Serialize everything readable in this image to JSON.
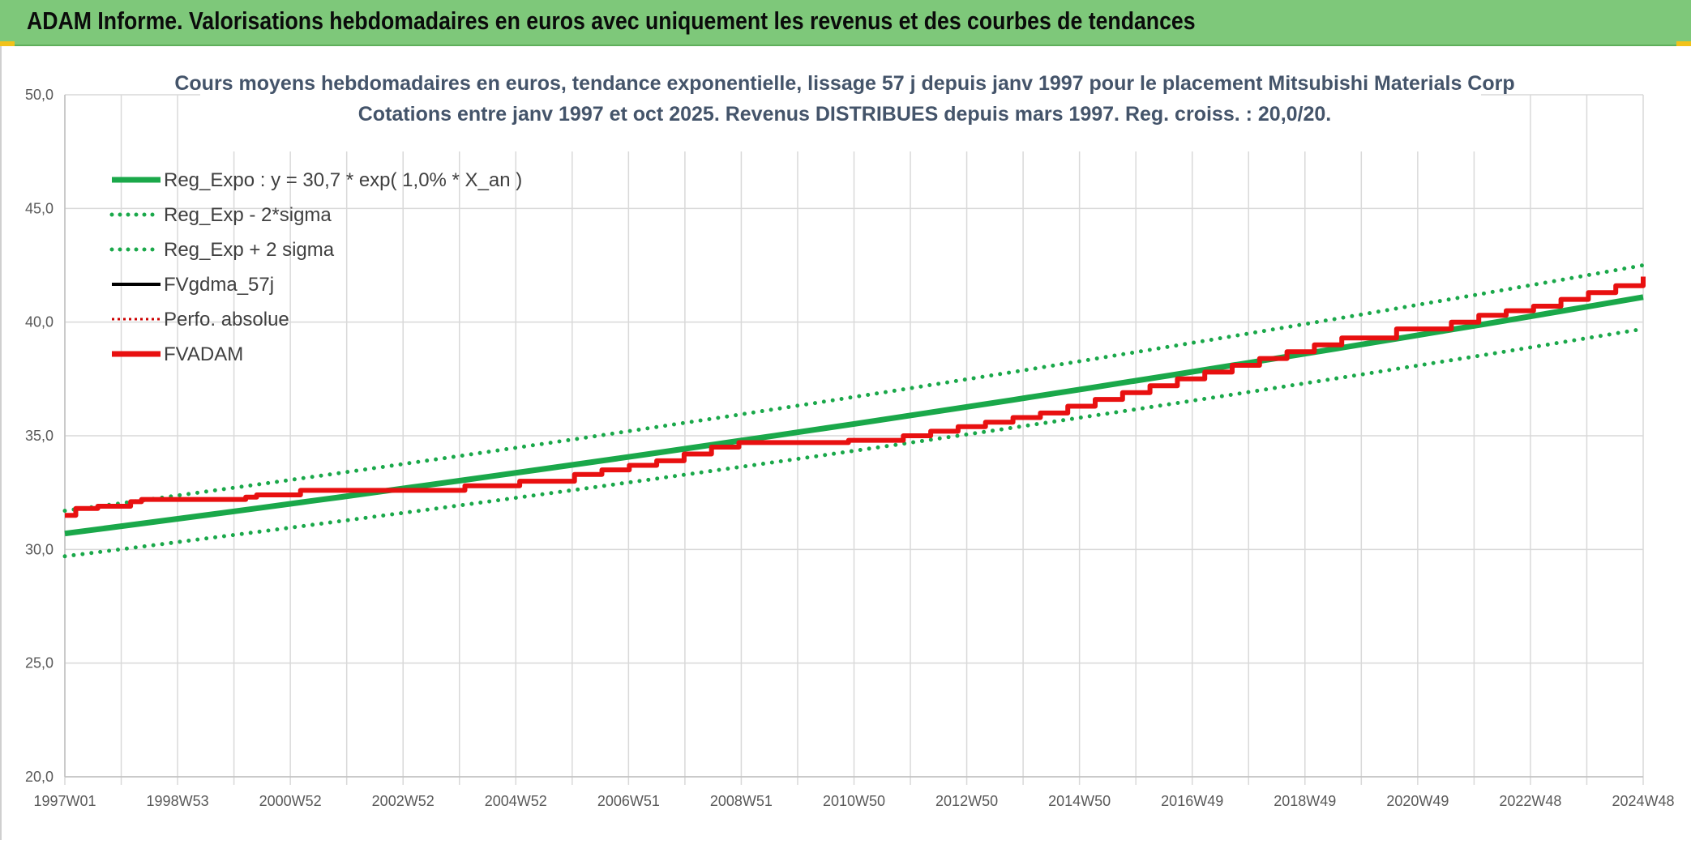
{
  "banner": {
    "title": "ADAM Informe. Valorisations hebdomadaires en euros avec uniquement les revenus et des courbes de tendances"
  },
  "colors": {
    "banner_bg": "#7ec87a",
    "regression": "#1aa84a",
    "fvadam": "#e81010",
    "fvgdma": "#000000",
    "perfo": "#cc0000",
    "grid": "#d9d9d9",
    "title_text": "#44546a"
  },
  "chart_data": {
    "type": "line",
    "title": "Cours moyens hebdomadaires en euros, tendance exponentielle, lissage 57 j depuis janv 1997 pour le placement Mitsubishi Materials Corp",
    "subtitle": "Cotations entre janv 1997 et oct 2025. Revenus DISTRIBUES depuis mars 1997. Reg. croiss. : 20,0/20.",
    "xlabel": "",
    "ylabel": "",
    "ylim": [
      20.0,
      50.0
    ],
    "y_ticks": [
      "20,0",
      "25,0",
      "30,0",
      "35,0",
      "40,0",
      "45,0",
      "50,0"
    ],
    "x_ticks": [
      "1997W01",
      "1998W53",
      "2000W52",
      "2002W52",
      "2004W52",
      "2006W51",
      "2008W51",
      "2010W50",
      "2012W50",
      "2014W50",
      "2016W49",
      "2018W49",
      "2020W49",
      "2022W48",
      "2024W48"
    ],
    "xlim": [
      1997.0,
      2025.8
    ],
    "grid": true,
    "legend_position": "top-left",
    "legend": [
      {
        "label": "Reg_Expo : y = 30,7 * exp( 1,0% *  X_an )",
        "style": "solid-thick",
        "color": "#1aa84a"
      },
      {
        "label": "Reg_Exp - 2*sigma",
        "style": "dotted",
        "color": "#1aa84a"
      },
      {
        "label": "Reg_Exp + 2 sigma",
        "style": "dotted",
        "color": "#1aa84a"
      },
      {
        "label": "FVgdma_57j",
        "style": "solid",
        "color": "#000000"
      },
      {
        "label": "Perfo. absolue",
        "style": "dotted-thin",
        "color": "#cc0000"
      },
      {
        "label": "FVADAM",
        "style": "solid-thick",
        "color": "#e81010"
      }
    ],
    "series": [
      {
        "name": "Reg_Expo : y = 30,7 * exp( 1,0% *  X_an )",
        "x": [
          1997.0,
          2025.8
        ],
        "y": [
          30.7,
          41.1
        ]
      },
      {
        "name": "Reg_Exp - 2*sigma",
        "x": [
          1997.0,
          2025.8
        ],
        "y": [
          29.7,
          39.7
        ]
      },
      {
        "name": "Reg_Exp + 2 sigma",
        "x": [
          1997.0,
          2025.8
        ],
        "y": [
          31.7,
          42.5
        ]
      },
      {
        "name": "FVADAM",
        "x": [
          1997.0,
          1997.2,
          1997.6,
          1998.2,
          1998.4,
          1999.2,
          2000.3,
          2000.5,
          2001.3,
          2002.3,
          2003.3,
          2004.3,
          2005.3,
          2006.3,
          2006.8,
          2007.3,
          2007.8,
          2008.3,
          2008.8,
          2009.3,
          2010.3,
          2011.3,
          2012.3,
          2012.8,
          2013.3,
          2013.8,
          2014.3,
          2014.8,
          2015.3,
          2015.8,
          2016.3,
          2016.8,
          2017.3,
          2017.8,
          2018.3,
          2018.8,
          2019.3,
          2019.8,
          2020.3,
          2021.3,
          2022.3,
          2022.8,
          2023.3,
          2023.8,
          2024.3,
          2024.8,
          2025.3,
          2025.8
        ],
        "y": [
          31.5,
          31.8,
          31.9,
          32.1,
          32.2,
          32.2,
          32.3,
          32.4,
          32.6,
          32.6,
          32.6,
          32.8,
          33.0,
          33.3,
          33.5,
          33.7,
          33.9,
          34.2,
          34.5,
          34.7,
          34.7,
          34.8,
          35.0,
          35.2,
          35.4,
          35.6,
          35.8,
          36.0,
          36.3,
          36.6,
          36.9,
          37.2,
          37.5,
          37.8,
          38.1,
          38.4,
          38.7,
          39.0,
          39.3,
          39.7,
          40.0,
          40.3,
          40.5,
          40.7,
          41.0,
          41.3,
          41.6,
          42.0
        ]
      }
    ]
  }
}
